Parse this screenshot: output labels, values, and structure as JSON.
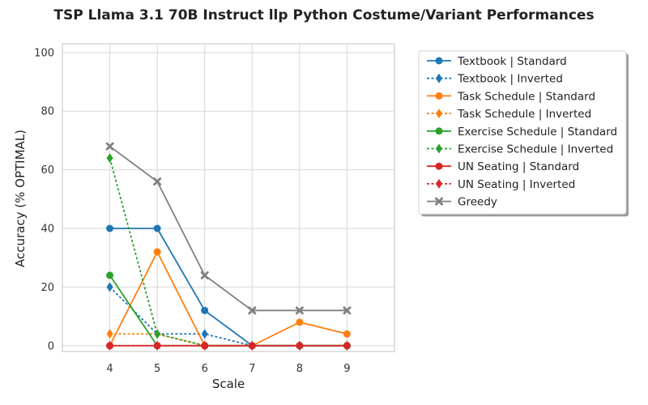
{
  "chart_data": {
    "type": "line",
    "title": "TSP Llama 3.1 70B Instruct llp Python Costume/Variant Performances",
    "xlabel": "Scale",
    "ylabel": "Accuracy (% OPTIMAL)",
    "x": [
      4,
      5,
      6,
      7,
      8,
      9
    ],
    "xlim": [
      3,
      10
    ],
    "ylim": [
      -2,
      103
    ],
    "xticks": [
      "4",
      "5",
      "6",
      "7",
      "8",
      "9"
    ],
    "yticks": [
      "0",
      "20",
      "40",
      "60",
      "80",
      "100"
    ],
    "grid": true,
    "legend_position": "outside-right",
    "series": [
      {
        "name": "Textbook | Standard",
        "values": [
          40,
          40,
          12,
          0,
          0,
          0
        ],
        "color": "#1f77b4",
        "dash": "solid",
        "marker": "circle"
      },
      {
        "name": "Textbook | Inverted",
        "values": [
          20,
          4,
          4,
          0,
          0,
          0
        ],
        "color": "#1f77b4",
        "dash": "dotted",
        "marker": "diamond"
      },
      {
        "name": "Task Schedule | Standard",
        "values": [
          0,
          32,
          0,
          0,
          8,
          4
        ],
        "color": "#ff7f0e",
        "dash": "solid",
        "marker": "circle"
      },
      {
        "name": "Task Schedule | Inverted",
        "values": [
          4,
          4,
          0,
          0,
          0,
          0
        ],
        "color": "#ff7f0e",
        "dash": "dotted",
        "marker": "diamond"
      },
      {
        "name": "Exercise Schedule | Standard",
        "values": [
          24,
          0,
          0,
          0,
          0,
          0
        ],
        "color": "#2ca02c",
        "dash": "solid",
        "marker": "circle"
      },
      {
        "name": "Exercise Schedule | Inverted",
        "values": [
          64,
          4,
          0,
          0,
          0,
          0
        ],
        "color": "#2ca02c",
        "dash": "dotted",
        "marker": "diamond"
      },
      {
        "name": "UN Seating | Standard",
        "values": [
          0,
          0,
          0,
          0,
          0,
          0
        ],
        "color": "#d62728",
        "dash": "solid",
        "marker": "circle"
      },
      {
        "name": "UN Seating | Inverted",
        "values": [
          0,
          0,
          0,
          0,
          0,
          0
        ],
        "color": "#d62728",
        "dash": "dotted",
        "marker": "diamond"
      },
      {
        "name": "Greedy",
        "values": [
          68,
          56,
          24,
          12,
          12,
          12
        ],
        "color": "#808080",
        "dash": "solid",
        "marker": "x"
      }
    ]
  }
}
